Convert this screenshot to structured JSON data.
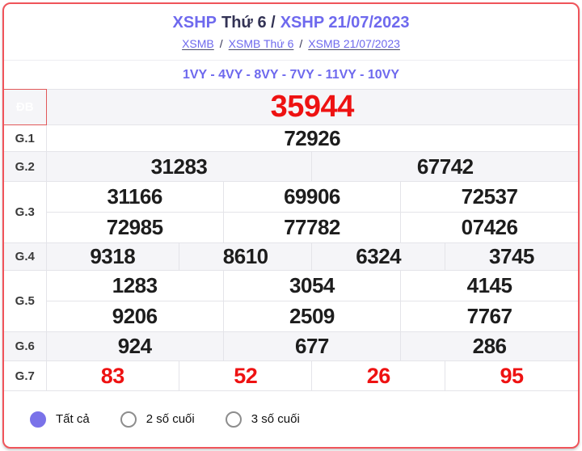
{
  "header": {
    "title_prefix": "XSHP",
    "title_mid": "Thứ 6 /",
    "title_suffix": "XSHP 21/07/2023",
    "links": [
      {
        "label": "XSMB"
      },
      {
        "label": "XSMB Thứ 6"
      },
      {
        "label": "XSMB 21/07/2023"
      }
    ],
    "link_separator": "/",
    "signs_line": "1VY - 4VY - 8VY - 7VY - 11VY - 10VY"
  },
  "results": {
    "rows": [
      {
        "label": "ĐB",
        "values": [
          "35944"
        ]
      },
      {
        "label": "G.1",
        "values": [
          "72926"
        ]
      },
      {
        "label": "G.2",
        "values": [
          "31283",
          "67742"
        ]
      },
      {
        "label": "G.3",
        "values": [
          "31166",
          "69906",
          "72537",
          "72985",
          "77782",
          "07426"
        ]
      },
      {
        "label": "G.4",
        "values": [
          "9318",
          "8610",
          "6324",
          "3745"
        ]
      },
      {
        "label": "G.5",
        "values": [
          "1283",
          "3054",
          "4145",
          "9206",
          "2509",
          "7767"
        ]
      },
      {
        "label": "G.6",
        "values": [
          "924",
          "677",
          "286"
        ]
      },
      {
        "label": "G.7",
        "values": [
          "83",
          "52",
          "26",
          "95"
        ]
      }
    ]
  },
  "footer": {
    "options": [
      {
        "label": "Tất cả",
        "selected": true
      },
      {
        "label": "2 số cuối",
        "selected": false
      },
      {
        "label": "3 số cuối",
        "selected": false
      }
    ]
  },
  "colors": {
    "accent_purple": "#6e69ee",
    "title_dark": "#333355",
    "prize_red": "#ee1212",
    "db_bg": "#e15859",
    "card_border": "#f0545a",
    "row_stripe": "#f5f5f8",
    "cell_border": "#e4e4e9",
    "number_black": "#1d1d1d",
    "radio_purple": "#7a72e9"
  }
}
